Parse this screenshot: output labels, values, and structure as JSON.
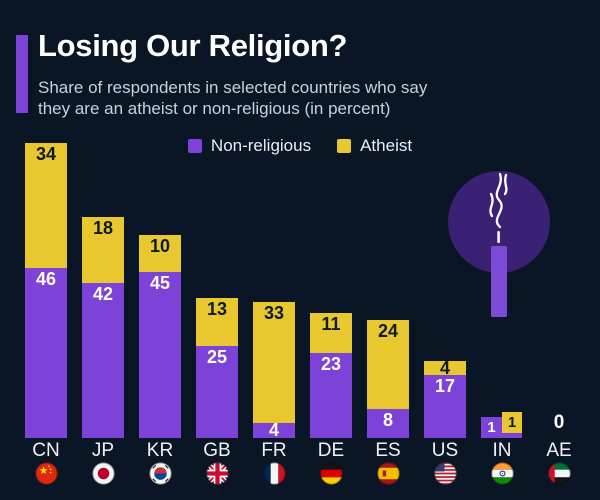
{
  "page": {
    "background": "#0a1626"
  },
  "header": {
    "title": "Losing Our Religion?",
    "subtitle_line1": "Share of respondents in selected countries who say",
    "subtitle_line2": "they are an atheist or non-religious (in percent)",
    "accent_color": "#7d42d8"
  },
  "legend": {
    "items": [
      {
        "label": "Non-religious",
        "color": "#7d42d8"
      },
      {
        "label": "Atheist",
        "color": "#e9c72f"
      }
    ]
  },
  "chart_data": {
    "type": "bar",
    "stacked": true,
    "title": "Losing Our Religion?",
    "subtitle": "Share of respondents in selected countries who say they are an atheist or non-religious (in percent)",
    "unit": "percent",
    "categories": [
      "CN",
      "JP",
      "KR",
      "GB",
      "FR",
      "DE",
      "ES",
      "US",
      "IN",
      "AE"
    ],
    "series": [
      {
        "name": "Non-religious",
        "color": "#7d42d8",
        "values": [
          46,
          42,
          45,
          25,
          4,
          23,
          8,
          17,
          1,
          0
        ]
      },
      {
        "name": "Atheist",
        "color": "#e9c72f",
        "values": [
          34,
          18,
          10,
          13,
          33,
          11,
          24,
          4,
          1,
          0
        ]
      }
    ],
    "totals": [
      80,
      60,
      55,
      38,
      37,
      34,
      32,
      21,
      2,
      0
    ],
    "zero_label": "0",
    "ylim": [
      0,
      80
    ],
    "grid": false,
    "axis_lines": false,
    "legend_position": "top-center",
    "value_labels": "inside-top-of-segment",
    "label_color_on_yellow": "#0e1b2b",
    "label_color_on_purple": "#ffffff"
  },
  "flags": [
    {
      "code": "CN",
      "country": "China"
    },
    {
      "code": "JP",
      "country": "Japan"
    },
    {
      "code": "KR",
      "country": "South Korea"
    },
    {
      "code": "GB",
      "country": "United Kingdom"
    },
    {
      "code": "FR",
      "country": "France"
    },
    {
      "code": "DE",
      "country": "Germany"
    },
    {
      "code": "ES",
      "country": "Spain"
    },
    {
      "code": "US",
      "country": "United States"
    },
    {
      "code": "IN",
      "country": "India"
    },
    {
      "code": "AE",
      "country": "United Arab Emirates"
    }
  ],
  "illustration": {
    "name": "extinguished-candle-with-smoke",
    "circle_color": "#3b2173",
    "candle_color": "#7b4ad6",
    "wick_color": "#ffffff",
    "smoke_color": "#ffffff"
  }
}
